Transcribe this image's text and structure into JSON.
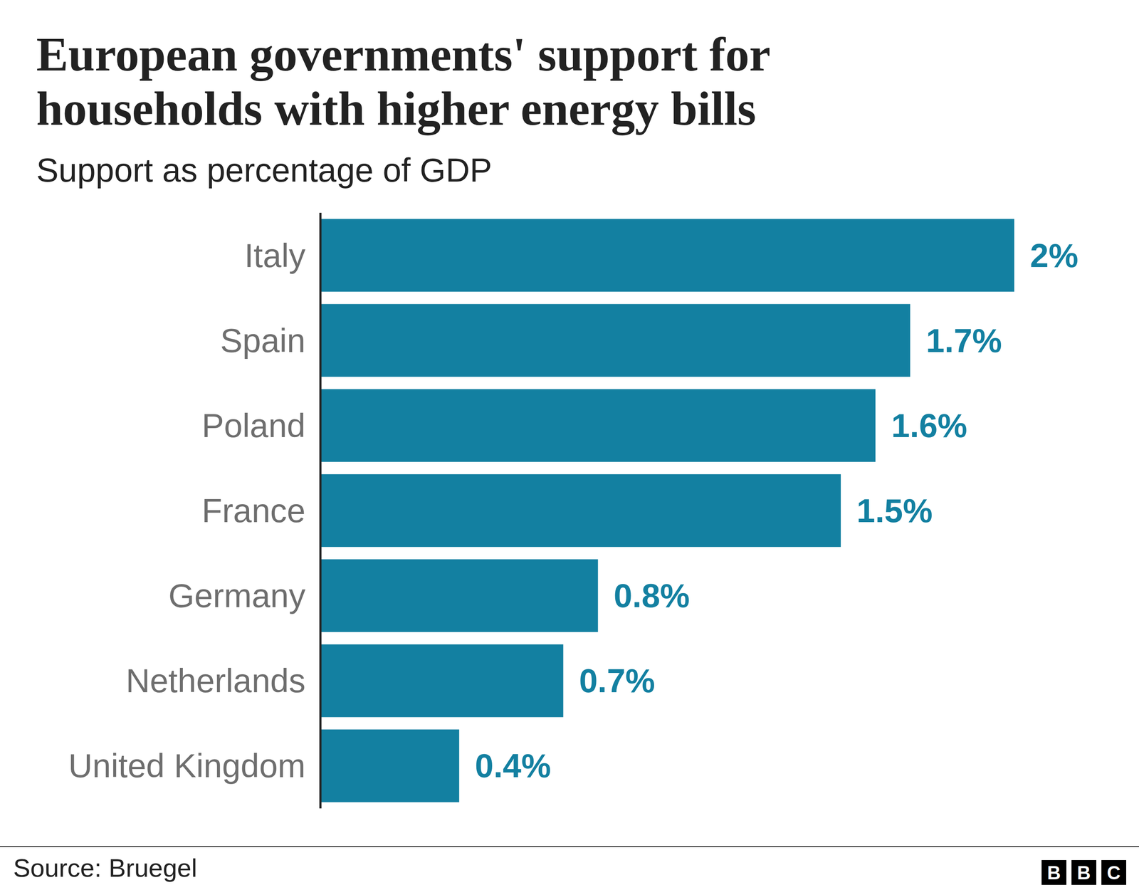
{
  "chart_data": {
    "type": "bar",
    "orientation": "horizontal",
    "title": "European governments' support for households with higher energy bills",
    "subtitle": "Support as percentage of GDP",
    "categories": [
      "Italy",
      "Spain",
      "Poland",
      "France",
      "Germany",
      "Netherlands",
      "United Kingdom"
    ],
    "values": [
      2,
      1.7,
      1.6,
      1.5,
      0.8,
      0.7,
      0.4
    ],
    "value_labels": [
      "2%",
      "1.7%",
      "1.6%",
      "1.5%",
      "0.8%",
      "0.7%",
      "0.4%"
    ],
    "color": "#1380a1",
    "xlim": [
      0,
      2
    ],
    "data_labels": true,
    "tick_labels": "y",
    "grid": false
  },
  "source": "Source: Bruegel",
  "logo": "BBC"
}
